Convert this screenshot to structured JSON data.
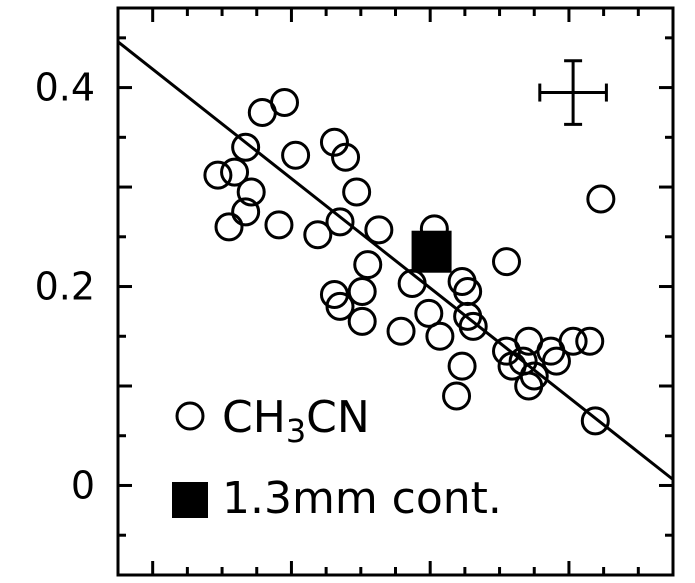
{
  "chart_data": {
    "type": "scatter",
    "title": "",
    "xlabel": "",
    "ylabel": "",
    "x_range": [
      0,
      1
    ],
    "ylim": [
      -0.09,
      0.48
    ],
    "y_ticks": [
      {
        "value": 0.4,
        "label": "0.4"
      },
      {
        "value": 0.2,
        "label": "0.2"
      },
      {
        "value": 0,
        "label": "0"
      }
    ],
    "grid": false,
    "legend_position": "bottom-left",
    "series": [
      {
        "name": "CH3CN",
        "marker": "open-circle",
        "points": [
          [
            0.18,
            0.312
          ],
          [
            0.21,
            0.315
          ],
          [
            0.23,
            0.34
          ],
          [
            0.24,
            0.295
          ],
          [
            0.23,
            0.275
          ],
          [
            0.2,
            0.26
          ],
          [
            0.26,
            0.375
          ],
          [
            0.3,
            0.385
          ],
          [
            0.32,
            0.332
          ],
          [
            0.29,
            0.262
          ],
          [
            0.36,
            0.252
          ],
          [
            0.39,
            0.345
          ],
          [
            0.41,
            0.33
          ],
          [
            0.43,
            0.295
          ],
          [
            0.4,
            0.265
          ],
          [
            0.47,
            0.257
          ],
          [
            0.45,
            0.222
          ],
          [
            0.39,
            0.192
          ],
          [
            0.4,
            0.18
          ],
          [
            0.44,
            0.195
          ],
          [
            0.44,
            0.165
          ],
          [
            0.51,
            0.155
          ],
          [
            0.53,
            0.203
          ],
          [
            0.57,
            0.258
          ],
          [
            0.56,
            0.173
          ],
          [
            0.58,
            0.15
          ],
          [
            0.62,
            0.205
          ],
          [
            0.63,
            0.195
          ],
          [
            0.63,
            0.17
          ],
          [
            0.64,
            0.16
          ],
          [
            0.7,
            0.225
          ],
          [
            0.62,
            0.12
          ],
          [
            0.61,
            0.09
          ],
          [
            0.7,
            0.135
          ],
          [
            0.71,
            0.12
          ],
          [
            0.74,
            0.145
          ],
          [
            0.73,
            0.125
          ],
          [
            0.75,
            0.11
          ],
          [
            0.74,
            0.1
          ],
          [
            0.78,
            0.135
          ],
          [
            0.79,
            0.125
          ],
          [
            0.82,
            0.145
          ],
          [
            0.85,
            0.145
          ],
          [
            0.86,
            0.065
          ],
          [
            0.87,
            0.288
          ]
        ]
      },
      {
        "name": "1.3mm cont.",
        "marker": "filled-square",
        "points": [
          [
            0.565,
            0.235
          ]
        ]
      }
    ],
    "fit_line": {
      "x": [
        0,
        1
      ],
      "y": [
        0.446,
        0.006
      ]
    },
    "typical_error_bar": {
      "x": 0.82,
      "y": 0.395,
      "x_err": 0.06,
      "y_err": 0.032
    }
  },
  "legend": [
    {
      "symbol": "open-circle",
      "label_main": "CH",
      "label_sub": "3",
      "label_tail": "CN"
    },
    {
      "symbol": "filled-square",
      "label": "1.3mm cont."
    }
  ]
}
